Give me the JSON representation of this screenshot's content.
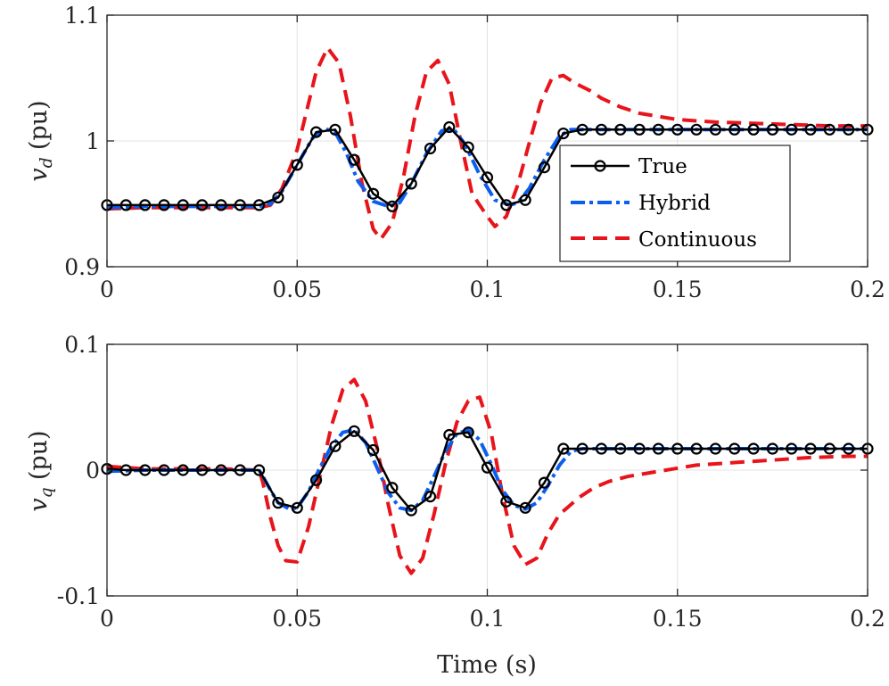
{
  "chart_data": [
    {
      "type": "line",
      "panel": "top",
      "ylabel_var": "v",
      "ylabel_sub": "d",
      "ylabel_unit": "(pu)",
      "xlim": [
        0,
        0.2
      ],
      "ylim": [
        0.9,
        1.1
      ],
      "xticks": [
        0,
        0.05,
        0.1,
        0.15,
        0.2
      ],
      "xtick_labels": [
        "0",
        "0.05",
        "0.1",
        "0.15",
        "0.2"
      ],
      "yticks": [
        0.9,
        1.0,
        1.1
      ],
      "ytick_labels": [
        "0.9",
        "1",
        "1.1"
      ],
      "grid": true,
      "legend": {
        "position": "right",
        "entries": [
          {
            "label": "True",
            "series": "true"
          },
          {
            "label": "Hybrid",
            "series": "hybrid"
          },
          {
            "label": "Continuous",
            "series": "continuous"
          }
        ]
      },
      "series": [
        {
          "name": "True",
          "key": "true",
          "color": "#000000",
          "x": [
            0,
            0.005,
            0.01,
            0.015,
            0.02,
            0.025,
            0.03,
            0.035,
            0.04,
            0.045,
            0.05,
            0.055,
            0.06,
            0.065,
            0.07,
            0.075,
            0.08,
            0.085,
            0.09,
            0.095,
            0.1,
            0.105,
            0.11,
            0.115,
            0.12,
            0.125,
            0.13,
            0.135,
            0.14,
            0.145,
            0.15,
            0.155,
            0.16,
            0.165,
            0.17,
            0.175,
            0.18,
            0.185,
            0.19,
            0.195,
            0.2
          ],
          "values": [
            0.949,
            0.949,
            0.949,
            0.949,
            0.949,
            0.949,
            0.949,
            0.949,
            0.949,
            0.955,
            0.981,
            1.007,
            1.009,
            0.985,
            0.958,
            0.948,
            0.966,
            0.994,
            1.011,
            0.995,
            0.971,
            0.949,
            0.953,
            0.979,
            1.006,
            1.009,
            1.009,
            1.009,
            1.009,
            1.009,
            1.009,
            1.009,
            1.009,
            1.009,
            1.009,
            1.009,
            1.009,
            1.009,
            1.009,
            1.009,
            1.009
          ]
        },
        {
          "name": "Hybrid",
          "key": "hybrid",
          "color": "#0b5ef0",
          "x": [
            0,
            0.01,
            0.02,
            0.03,
            0.04,
            0.043,
            0.046,
            0.05,
            0.054,
            0.057,
            0.06,
            0.063,
            0.066,
            0.07,
            0.074,
            0.077,
            0.08,
            0.084,
            0.088,
            0.091,
            0.094,
            0.098,
            0.102,
            0.106,
            0.108,
            0.111,
            0.115,
            0.119,
            0.122,
            0.125,
            0.13,
            0.14,
            0.15,
            0.16,
            0.17,
            0.18,
            0.19,
            0.2
          ],
          "values": [
            0.947,
            0.948,
            0.948,
            0.948,
            0.948,
            0.95,
            0.96,
            0.981,
            1.002,
            1.01,
            1.007,
            0.99,
            0.968,
            0.952,
            0.948,
            0.951,
            0.966,
            0.99,
            1.008,
            1.01,
            0.998,
            0.973,
            0.953,
            0.949,
            0.951,
            0.962,
            0.985,
            1.004,
            1.009,
            1.009,
            1.009,
            1.009,
            1.009,
            1.009,
            1.009,
            1.009,
            1.009,
            1.009
          ]
        },
        {
          "name": "Continuous",
          "key": "continuous",
          "color": "#e8141b",
          "x": [
            0,
            0.01,
            0.02,
            0.03,
            0.04,
            0.043,
            0.046,
            0.05,
            0.053,
            0.055,
            0.058,
            0.061,
            0.064,
            0.067,
            0.07,
            0.072,
            0.075,
            0.078,
            0.081,
            0.084,
            0.087,
            0.09,
            0.093,
            0.096,
            0.1,
            0.102,
            0.105,
            0.108,
            0.111,
            0.114,
            0.117,
            0.12,
            0.123,
            0.127,
            0.13,
            0.135,
            0.14,
            0.15,
            0.16,
            0.17,
            0.18,
            0.19,
            0.2
          ],
          "values": [
            0.946,
            0.947,
            0.947,
            0.947,
            0.947,
            0.949,
            0.962,
            0.993,
            1.03,
            1.055,
            1.074,
            1.062,
            1.02,
            0.967,
            0.93,
            0.922,
            0.935,
            0.972,
            1.02,
            1.055,
            1.064,
            1.045,
            1.0,
            0.958,
            0.94,
            0.932,
            0.94,
            0.965,
            0.998,
            1.03,
            1.05,
            1.052,
            1.046,
            1.04,
            1.034,
            1.027,
            1.022,
            1.017,
            1.015,
            1.014,
            1.013,
            1.012,
            1.012
          ]
        }
      ]
    },
    {
      "type": "line",
      "panel": "bottom",
      "ylabel_var": "v",
      "ylabel_sub": "q",
      "ylabel_unit": "(pu)",
      "xlabel": "Time (s)",
      "xlim": [
        0,
        0.2
      ],
      "ylim": [
        -0.1,
        0.1
      ],
      "xticks": [
        0,
        0.05,
        0.1,
        0.15,
        0.2
      ],
      "xtick_labels": [
        "0",
        "0.05",
        "0.1",
        "0.15",
        "0.2"
      ],
      "yticks": [
        -0.1,
        0,
        0.1
      ],
      "ytick_labels": [
        "-0.1",
        "0",
        "0.1"
      ],
      "grid": true,
      "series": [
        {
          "name": "True",
          "key": "true",
          "color": "#000000",
          "x": [
            0,
            0.005,
            0.01,
            0.015,
            0.02,
            0.025,
            0.03,
            0.035,
            0.04,
            0.045,
            0.05,
            0.055,
            0.06,
            0.065,
            0.07,
            0.075,
            0.08,
            0.085,
            0.09,
            0.095,
            0.1,
            0.105,
            0.11,
            0.115,
            0.12,
            0.125,
            0.13,
            0.135,
            0.14,
            0.145,
            0.15,
            0.155,
            0.16,
            0.165,
            0.17,
            0.175,
            0.18,
            0.185,
            0.19,
            0.195,
            0.2
          ],
          "values": [
            0.001,
            0.0,
            0.0,
            0.0,
            0.0,
            0.0,
            0.0,
            0.0,
            0.0,
            -0.026,
            -0.03,
            -0.008,
            0.019,
            0.031,
            0.016,
            -0.014,
            -0.032,
            -0.021,
            0.028,
            0.03,
            0.002,
            -0.025,
            -0.03,
            -0.01,
            0.017,
            0.017,
            0.017,
            0.017,
            0.017,
            0.017,
            0.017,
            0.017,
            0.017,
            0.017,
            0.017,
            0.017,
            0.017,
            0.017,
            0.017,
            0.017,
            0.017
          ]
        },
        {
          "name": "Hybrid",
          "key": "hybrid",
          "color": "#0b5ef0",
          "x": [
            0,
            0.01,
            0.02,
            0.03,
            0.04,
            0.041,
            0.043,
            0.045,
            0.048,
            0.05,
            0.053,
            0.056,
            0.059,
            0.062,
            0.065,
            0.068,
            0.071,
            0.074,
            0.077,
            0.08,
            0.083,
            0.086,
            0.089,
            0.092,
            0.095,
            0.098,
            0.101,
            0.104,
            0.107,
            0.11,
            0.113,
            0.116,
            0.119,
            0.122,
            0.125,
            0.13,
            0.14,
            0.15,
            0.16,
            0.17,
            0.18,
            0.19,
            0.2
          ],
          "values": [
            -0.001,
            0.0,
            0.0,
            0.0,
            0.0,
            -0.005,
            -0.016,
            -0.026,
            -0.031,
            -0.03,
            -0.017,
            0.002,
            0.019,
            0.03,
            0.032,
            0.022,
            0.002,
            -0.018,
            -0.03,
            -0.032,
            -0.024,
            -0.005,
            0.015,
            0.029,
            0.032,
            0.024,
            0.005,
            -0.016,
            -0.028,
            -0.031,
            -0.026,
            -0.012,
            0.004,
            0.015,
            0.017,
            0.017,
            0.017,
            0.017,
            0.017,
            0.017,
            0.017,
            0.017,
            0.017
          ]
        },
        {
          "name": "Continuous",
          "key": "continuous",
          "color": "#e8141b",
          "x": [
            0,
            0.01,
            0.02,
            0.03,
            0.04,
            0.041,
            0.043,
            0.045,
            0.047,
            0.05,
            0.053,
            0.056,
            0.059,
            0.062,
            0.065,
            0.068,
            0.071,
            0.074,
            0.077,
            0.08,
            0.083,
            0.086,
            0.089,
            0.092,
            0.095,
            0.098,
            0.101,
            0.104,
            0.107,
            0.11,
            0.113,
            0.116,
            0.119,
            0.121,
            0.124,
            0.128,
            0.132,
            0.137,
            0.145,
            0.155,
            0.165,
            0.175,
            0.185,
            0.195,
            0.2
          ],
          "values": [
            0.003,
            0.001,
            0.001,
            0.001,
            0.0,
            -0.01,
            -0.038,
            -0.06,
            -0.072,
            -0.073,
            -0.045,
            -0.005,
            0.035,
            0.064,
            0.072,
            0.055,
            0.018,
            -0.028,
            -0.068,
            -0.082,
            -0.07,
            -0.035,
            0.005,
            0.038,
            0.055,
            0.058,
            0.03,
            -0.02,
            -0.06,
            -0.075,
            -0.07,
            -0.05,
            -0.035,
            -0.03,
            -0.022,
            -0.014,
            -0.009,
            -0.005,
            -0.001,
            0.004,
            0.006,
            0.008,
            0.01,
            0.011,
            0.011
          ]
        }
      ]
    }
  ]
}
